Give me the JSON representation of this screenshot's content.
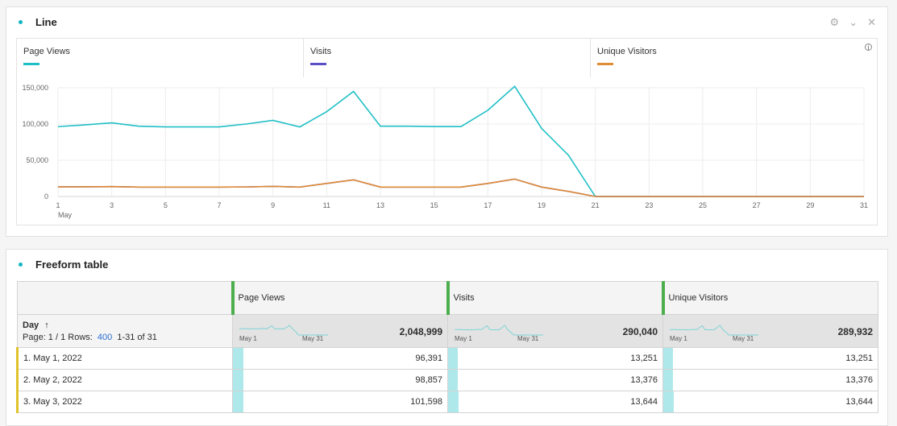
{
  "line_panel": {
    "title": "Line",
    "icons": [
      "gear-icon",
      "chevron-down-icon",
      "close-icon"
    ],
    "info_icon": "info-icon"
  },
  "freeform_panel": {
    "title": "Freeform table"
  },
  "chart_data": {
    "type": "line",
    "x": [
      1,
      2,
      3,
      4,
      5,
      6,
      7,
      8,
      9,
      10,
      11,
      12,
      13,
      14,
      15,
      16,
      17,
      18,
      19,
      20,
      21,
      22,
      23,
      24,
      25,
      26,
      27,
      28,
      29,
      30,
      31
    ],
    "xticks": [
      "1",
      "3",
      "5",
      "7",
      "9",
      "11",
      "13",
      "15",
      "17",
      "19",
      "21",
      "23",
      "25",
      "27",
      "29",
      "31"
    ],
    "xsublabel": "May",
    "yticks": [
      "0",
      "50,000",
      "100,000",
      "150,000"
    ],
    "ylim": [
      0,
      150000
    ],
    "grid": true,
    "legend_placement": "top",
    "series": [
      {
        "name": "Page Views",
        "color": "#1fbfc6",
        "values": [
          96391,
          98857,
          101598,
          97000,
          96000,
          96000,
          96000,
          100000,
          105000,
          96000,
          117000,
          145000,
          97000,
          97000,
          96500,
          96500,
          119000,
          152000,
          94000,
          57000,
          0,
          0,
          0,
          0,
          0,
          0,
          0,
          0,
          0,
          0,
          0
        ]
      },
      {
        "name": "Visits",
        "color": "#5a4fc6",
        "values": [
          13251,
          13376,
          13644,
          13000,
          13000,
          13000,
          13000,
          13200,
          14000,
          13000,
          18000,
          23000,
          13000,
          13000,
          13000,
          13000,
          18000,
          24000,
          13000,
          7000,
          0,
          0,
          0,
          0,
          0,
          0,
          0,
          0,
          0,
          0,
          0
        ]
      },
      {
        "name": "Unique Visitors",
        "color": "#e08c35",
        "values": [
          13251,
          13376,
          13644,
          13000,
          13000,
          13000,
          13000,
          13200,
          14000,
          13000,
          18000,
          23000,
          13000,
          13000,
          13000,
          13000,
          18000,
          24000,
          13000,
          7000,
          0,
          0,
          0,
          0,
          0,
          0,
          0,
          0,
          0,
          0,
          0
        ]
      }
    ]
  },
  "table": {
    "dimension": "Day",
    "sort_icon": "arrow-up-icon",
    "page_label": "Page: 1 / 1 Rows:",
    "rows_value": "400",
    "range": "1-31 of 31",
    "spark_start": "May 1",
    "spark_end": "May 31",
    "columns": [
      {
        "name": "Page Views",
        "total": "2,048,999",
        "total_value": 2048999
      },
      {
        "name": "Visits",
        "total": "290,040",
        "total_value": 290040
      },
      {
        "name": "Unique Visitors",
        "total": "289,932",
        "total_value": 289932
      }
    ],
    "rows": [
      {
        "label": "1.  May 1, 2022",
        "values": [
          "96,391",
          "13,251",
          "13,251"
        ],
        "raw": [
          96391,
          13251,
          13251
        ]
      },
      {
        "label": "2.  May 2, 2022",
        "values": [
          "98,857",
          "13,376",
          "13,376"
        ],
        "raw": [
          98857,
          13376,
          13376
        ]
      },
      {
        "label": "3.  May 3, 2022",
        "values": [
          "101,598",
          "13,644",
          "13,644"
        ],
        "raw": [
          101598,
          13644,
          13644
        ]
      }
    ]
  }
}
